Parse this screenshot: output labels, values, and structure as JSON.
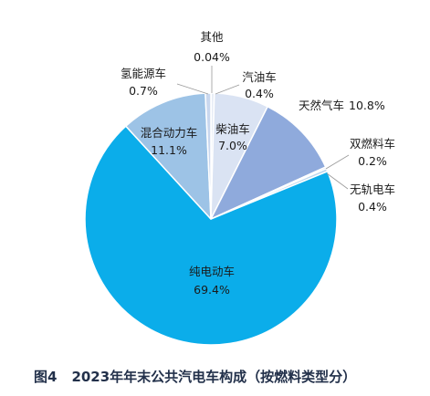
{
  "chart_data": {
    "type": "pie",
    "figure_label": "图4",
    "title": "2023年年末公共汽电车构成（按燃料类型分）",
    "categories": [
      "其他",
      "汽油车",
      "柴油车",
      "天然气车",
      "双燃料车",
      "无轨电车",
      "纯电动车",
      "混合动力车",
      "氢能源车"
    ],
    "values": [
      0.04,
      0.4,
      7.0,
      10.8,
      0.2,
      0.4,
      69.4,
      11.1,
      0.7
    ],
    "value_labels": [
      "0.04%",
      "0.4%",
      "7.0%",
      "10.8%",
      "0.2%",
      "0.4%",
      "69.4%",
      "11.1%",
      "0.7%"
    ],
    "colors": [
      "#E9E9E9",
      "#E6ECF6",
      "#DAE3F3",
      "#8FAADC",
      "#B4C7E7",
      "#BDD7EE",
      "#0BADEA",
      "#9DC3E6",
      "#C9D7EE"
    ],
    "legend": "none"
  }
}
